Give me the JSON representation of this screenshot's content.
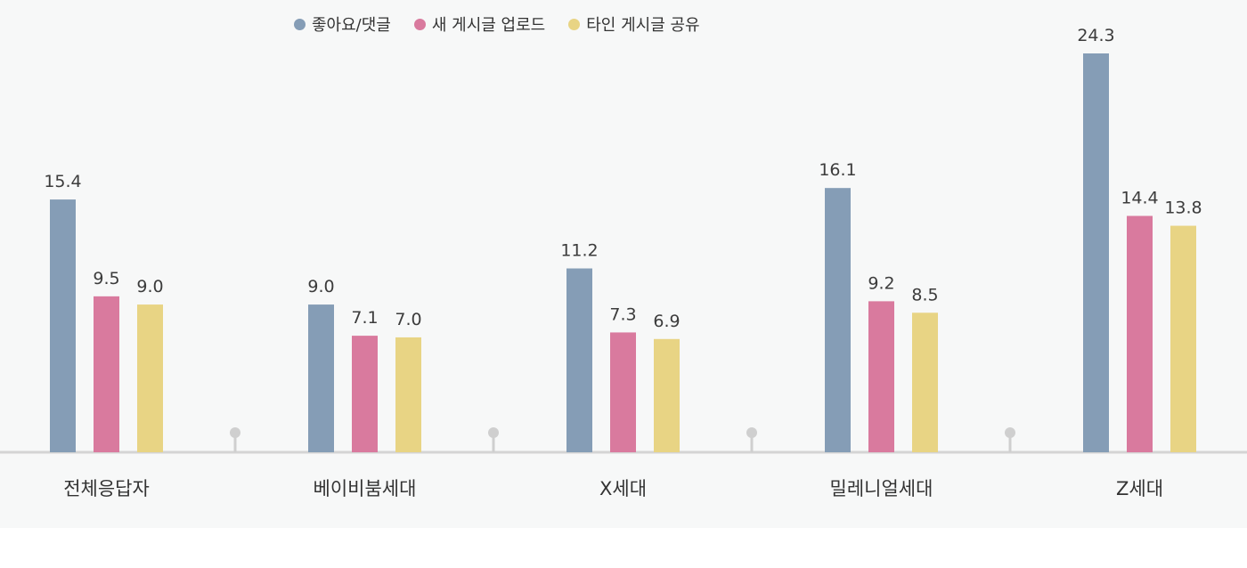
{
  "chart_data": {
    "type": "bar",
    "title": "",
    "xlabel": "",
    "ylabel": "",
    "ylim": [
      0,
      26
    ],
    "grid": false,
    "legend_position": "top",
    "categories": [
      "전체응답자",
      "베이비붐세대",
      "X세대",
      "밀레니얼세대",
      "Z세대"
    ],
    "series": [
      {
        "name": "좋아요/댓글",
        "color": "#859db6",
        "values": [
          15.4,
          9.0,
          11.2,
          16.1,
          24.3
        ],
        "labels": [
          "15.4",
          "9.0",
          "11.2",
          "16.1",
          "24.3"
        ]
      },
      {
        "name": "새 게시글 업로드",
        "color": "#d97a9e",
        "values": [
          9.5,
          7.1,
          7.3,
          9.2,
          14.4
        ],
        "labels": [
          "9.5",
          "7.1",
          "7.3",
          "9.2",
          "14.4"
        ]
      },
      {
        "name": "타인 게시글 공유",
        "color": "#e8d484",
        "values": [
          9.0,
          7.0,
          6.9,
          8.5,
          13.8
        ],
        "labels": [
          "9.0",
          "7.0",
          "6.9",
          "8.5",
          "13.8"
        ]
      }
    ],
    "colors": {
      "axis": "#d4d4d4",
      "separator": "#cfcfcf",
      "background": "#f7f8f8"
    }
  }
}
